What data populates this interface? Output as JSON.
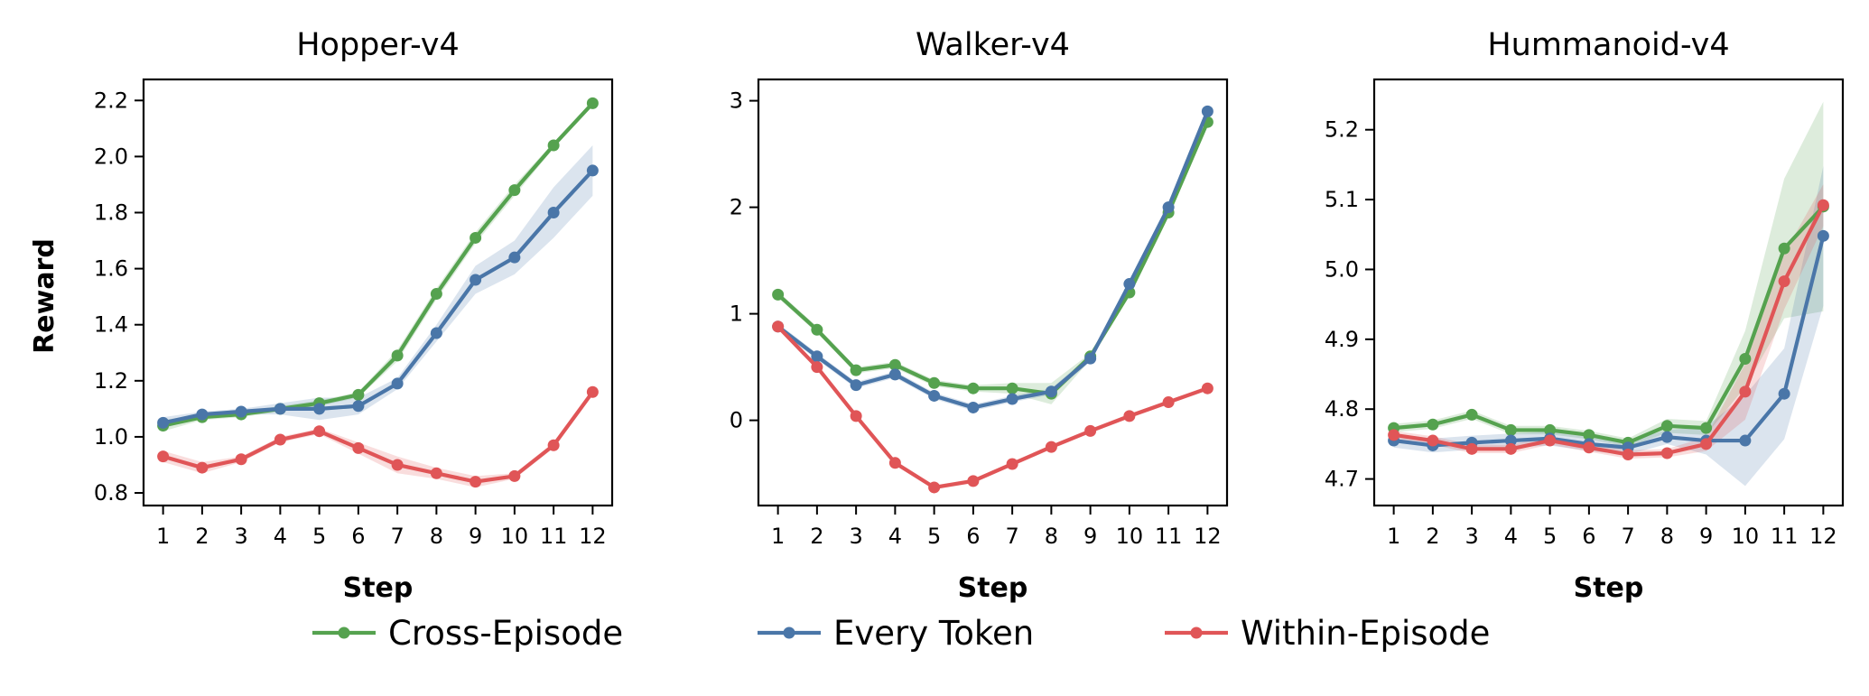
{
  "colors": {
    "Cross-Episode": "#55a24f",
    "Every Token": "#4a76a8",
    "Within-Episode": "#e05557"
  },
  "legend": [
    "Cross-Episode",
    "Every Token",
    "Within-Episode"
  ],
  "ylabel": "Reward",
  "chart_data": [
    {
      "type": "line",
      "title": "Hopper-v4",
      "xlabel": "Step",
      "ylabel": "Reward",
      "xlim": [
        0.5,
        12.5
      ],
      "ylim": [
        0.755,
        2.275
      ],
      "xticks": [
        1,
        2,
        3,
        4,
        5,
        6,
        7,
        8,
        9,
        10,
        11,
        12
      ],
      "yticks": [
        0.8,
        1.0,
        1.2,
        1.4,
        1.6,
        1.8,
        2.0,
        2.2
      ],
      "yticklabels": [
        "0.8",
        "1.0",
        "1.2",
        "1.4",
        "1.6",
        "1.8",
        "2.0",
        "2.2"
      ],
      "x": [
        1,
        2,
        3,
        4,
        5,
        6,
        7,
        8,
        9,
        10,
        11,
        12
      ],
      "series": [
        {
          "name": "Cross-Episode",
          "values": [
            1.04,
            1.07,
            1.08,
            1.1,
            1.12,
            1.15,
            1.29,
            1.51,
            1.71,
            1.88,
            2.04,
            2.19
          ],
          "band": [
            0.02,
            0.01,
            0.01,
            0.01,
            0.01,
            0.01,
            0.02,
            0.02,
            0.02,
            0.02,
            0.01,
            0.01
          ]
        },
        {
          "name": "Every Token",
          "values": [
            1.05,
            1.08,
            1.09,
            1.1,
            1.1,
            1.11,
            1.19,
            1.37,
            1.56,
            1.64,
            1.8,
            1.95
          ],
          "band": [
            0.02,
            0.01,
            0.01,
            0.02,
            0.04,
            0.03,
            0.02,
            0.03,
            0.05,
            0.06,
            0.09,
            0.09
          ]
        },
        {
          "name": "Within-Episode",
          "values": [
            0.93,
            0.89,
            0.92,
            0.99,
            1.02,
            0.96,
            0.9,
            0.87,
            0.84,
            0.86,
            0.97,
            1.16
          ],
          "band": [
            0.02,
            0.02,
            0.01,
            0.01,
            0.01,
            0.02,
            0.03,
            0.02,
            0.02,
            0.01,
            0.01,
            0.01
          ]
        }
      ]
    },
    {
      "type": "line",
      "title": "Walker-v4",
      "xlabel": "Step",
      "ylabel": "",
      "xlim": [
        0.5,
        12.5
      ],
      "ylim": [
        -0.8,
        3.2
      ],
      "xticks": [
        1,
        2,
        3,
        4,
        5,
        6,
        7,
        8,
        9,
        10,
        11,
        12
      ],
      "yticks": [
        0,
        1,
        2,
        3
      ],
      "yticklabels": [
        "0",
        "1",
        "2",
        "3"
      ],
      "x": [
        1,
        2,
        3,
        4,
        5,
        6,
        7,
        8,
        9,
        10,
        11,
        12
      ],
      "series": [
        {
          "name": "Cross-Episode",
          "values": [
            1.18,
            0.85,
            0.47,
            0.52,
            0.35,
            0.3,
            0.3,
            0.25,
            0.6,
            1.2,
            1.95,
            2.8
          ],
          "band": [
            0.03,
            0.03,
            0.03,
            0.03,
            0.03,
            0.03,
            0.05,
            0.1,
            0.03,
            0.03,
            0.03,
            0.03
          ]
        },
        {
          "name": "Every Token",
          "values": [
            0.88,
            0.6,
            0.33,
            0.43,
            0.23,
            0.12,
            0.2,
            0.27,
            0.58,
            1.28,
            2.0,
            2.9
          ],
          "band": [
            0.03,
            0.03,
            0.03,
            0.03,
            0.03,
            0.03,
            0.03,
            0.03,
            0.03,
            0.03,
            0.03,
            0.03
          ]
        },
        {
          "name": "Within-Episode",
          "values": [
            0.88,
            0.5,
            0.04,
            -0.4,
            -0.63,
            -0.57,
            -0.41,
            -0.25,
            -0.1,
            0.04,
            0.17,
            0.3
          ],
          "band": [
            0.02,
            0.02,
            0.02,
            0.02,
            0.02,
            0.02,
            0.02,
            0.02,
            0.02,
            0.02,
            0.02,
            0.02
          ]
        }
      ]
    },
    {
      "type": "line",
      "title": "Hummanoid-v4",
      "xlabel": "Step",
      "ylabel": "",
      "xlim": [
        0.5,
        12.5
      ],
      "ylim": [
        4.662,
        5.272
      ],
      "xticks": [
        1,
        2,
        3,
        4,
        5,
        6,
        7,
        8,
        9,
        10,
        11,
        12
      ],
      "yticks": [
        4.7,
        4.8,
        4.9,
        5.0,
        5.1,
        5.2
      ],
      "yticklabels": [
        "4.7",
        "4.8",
        "4.9",
        "5.0",
        "5.1",
        "5.2"
      ],
      "x": [
        1,
        2,
        3,
        4,
        5,
        6,
        7,
        8,
        9,
        10,
        11,
        12
      ],
      "series": [
        {
          "name": "Cross-Episode",
          "values": [
            4.773,
            4.778,
            4.792,
            4.77,
            4.77,
            4.763,
            4.752,
            4.776,
            4.773,
            4.872,
            5.03,
            5.09
          ],
          "band": [
            0.006,
            0.006,
            0.006,
            0.006,
            0.006,
            0.006,
            0.006,
            0.01,
            0.01,
            0.04,
            0.1,
            0.15
          ]
        },
        {
          "name": "Every Token",
          "values": [
            4.755,
            4.748,
            4.752,
            4.755,
            4.758,
            4.75,
            4.745,
            4.76,
            4.755,
            4.755,
            4.822,
            5.048
          ],
          "band": [
            0.01,
            0.01,
            0.01,
            0.01,
            0.01,
            0.01,
            0.01,
            0.01,
            0.02,
            0.065,
            0.065,
            0.1
          ]
        },
        {
          "name": "Within-Episode",
          "values": [
            4.763,
            4.755,
            4.743,
            4.743,
            4.755,
            4.745,
            4.735,
            4.737,
            4.75,
            4.825,
            4.983,
            5.092
          ],
          "band": [
            0.006,
            0.006,
            0.006,
            0.006,
            0.006,
            0.006,
            0.006,
            0.006,
            0.01,
            0.04,
            0.04,
            0.03
          ]
        }
      ]
    }
  ]
}
